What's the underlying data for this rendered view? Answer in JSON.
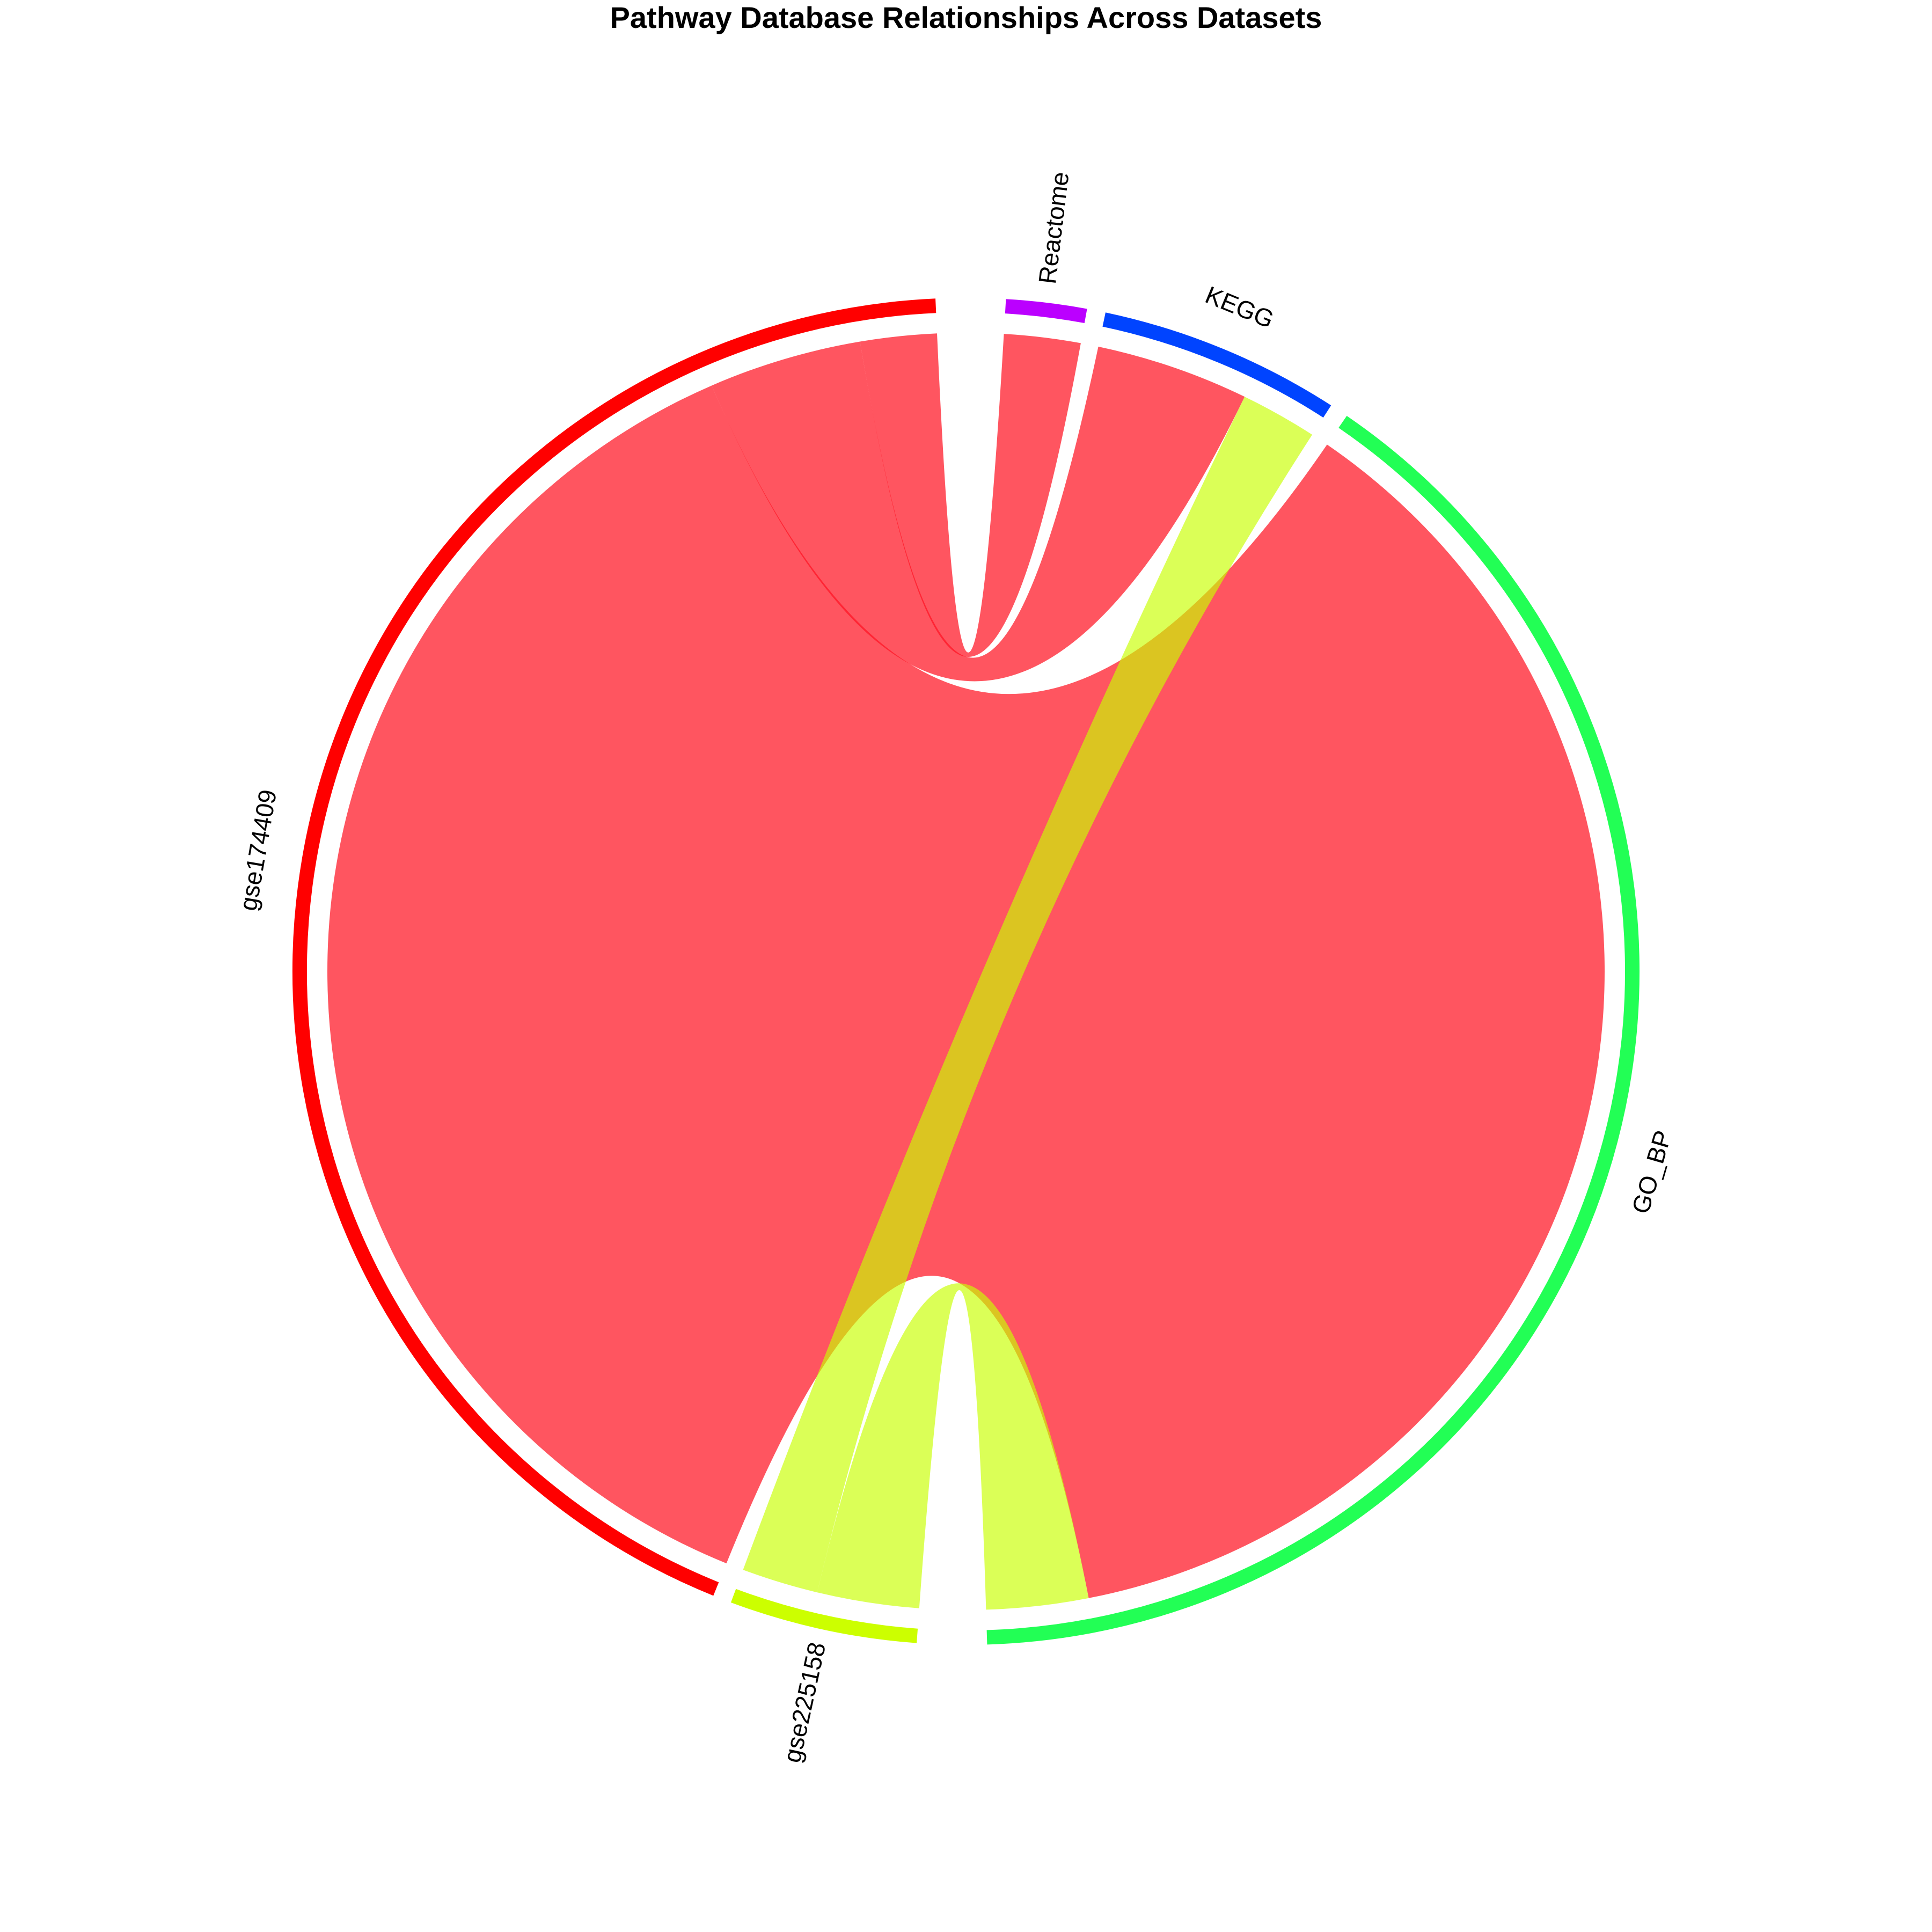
{
  "chart_data": {
    "type": "chord",
    "title": "Pathway Database Relationships Across Datasets",
    "sectors": [
      {
        "name": "Reactome",
        "color": "#BB00FF"
      },
      {
        "name": "KEGG",
        "color": "#0044FF"
      },
      {
        "name": "GO_BP",
        "color": "#22FF55"
      },
      {
        "name": "gse225158",
        "color": "#CCFF00"
      },
      {
        "name": "gse174409",
        "color": "#FF0000"
      }
    ],
    "links": [
      {
        "source": "gse174409",
        "target": "GO_BP",
        "value": 58,
        "color": "#FF0000"
      },
      {
        "source": "gse174409",
        "target": "KEGG",
        "value": 6,
        "color": "#FF0000"
      },
      {
        "source": "gse174409",
        "target": "Reactome",
        "value": 3,
        "color": "#FF0000"
      },
      {
        "source": "gse225158",
        "target": "GO_BP",
        "value": 4,
        "color": "#CCFF00"
      },
      {
        "source": "gse225158",
        "target": "KEGG",
        "value": 3,
        "color": "#CCFF00"
      }
    ],
    "legend": "none"
  }
}
